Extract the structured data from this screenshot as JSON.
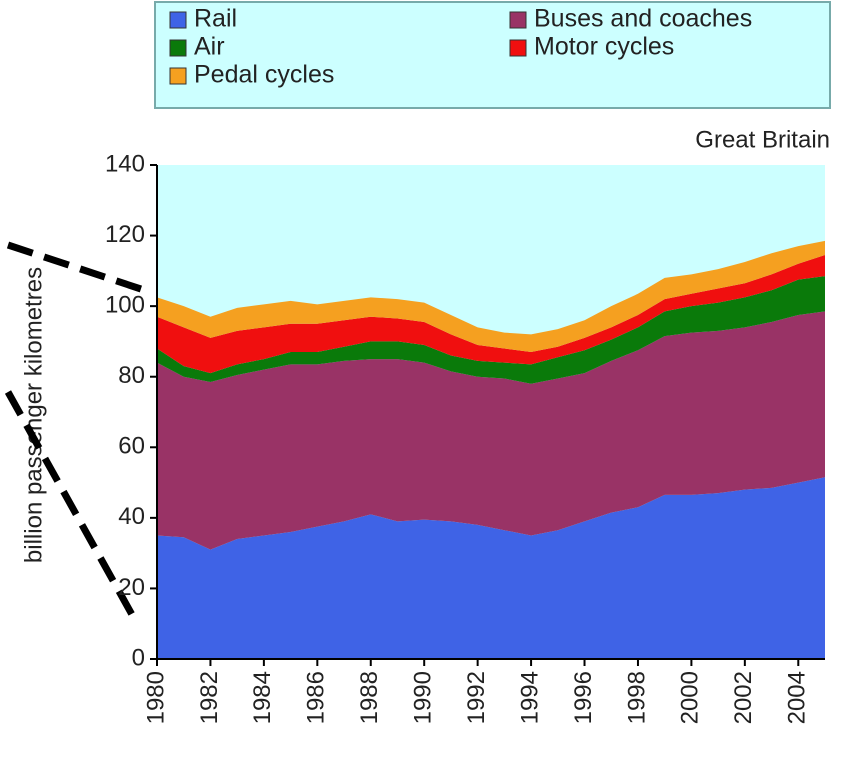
{
  "chart_data": {
    "type": "stacked_area",
    "subtitle": "Great Britain",
    "y_label": "billion passenger kilometres",
    "x": [
      1980,
      1981,
      1982,
      1983,
      1984,
      1985,
      1986,
      1987,
      1988,
      1989,
      1990,
      1991,
      1992,
      1993,
      1994,
      1995,
      1996,
      1997,
      1998,
      1999,
      2000,
      2001,
      2002,
      2003,
      2004,
      2005
    ],
    "xlim": [
      1980,
      2005
    ],
    "xticks": [
      1980,
      1982,
      1984,
      1986,
      1988,
      1990,
      1992,
      1994,
      1996,
      1998,
      2000,
      2002,
      2004
    ],
    "ylim": [
      0,
      140
    ],
    "yticks": [
      0,
      20,
      40,
      60,
      80,
      100,
      120,
      140
    ],
    "legend": "top",
    "series": [
      {
        "name": "Rail",
        "color": "#3f63e6",
        "values": [
          35,
          34.5,
          31,
          34,
          35,
          36,
          37.5,
          39,
          41,
          39,
          39.5,
          39,
          38,
          36.5,
          35,
          36.5,
          39,
          41.5,
          43,
          46.5,
          46.5,
          47,
          48,
          48.5,
          50,
          51.5
        ]
      },
      {
        "name": "Buses and coaches",
        "color": "#993366",
        "values": [
          49,
          45.5,
          47.5,
          46.5,
          47,
          47.5,
          46,
          45.5,
          44,
          46,
          44.5,
          42.5,
          42,
          43,
          43,
          43,
          42,
          43,
          44.5,
          45,
          46,
          46,
          46,
          47,
          47.5,
          47
        ]
      },
      {
        "name": "Air",
        "color": "#0a7a0a",
        "values": [
          4,
          3,
          2.5,
          3,
          3,
          3.5,
          3.5,
          4,
          5,
          5,
          5,
          4.5,
          4.5,
          4.5,
          5.5,
          6,
          6.5,
          6,
          6.5,
          7,
          7.5,
          8,
          8.5,
          9,
          10,
          10
        ]
      },
      {
        "name": "Motor cycles",
        "color": "#f00f0f",
        "values": [
          9,
          11,
          10,
          9.5,
          9,
          8,
          8,
          7.5,
          7,
          6.5,
          6.5,
          6,
          4.5,
          4,
          3.5,
          3,
          3.5,
          3.5,
          3.5,
          3.5,
          3.5,
          4,
          4,
          4.5,
          4.5,
          6
        ]
      },
      {
        "name": "Pedal cycles",
        "color": "#f5a020",
        "values": [
          5.5,
          6,
          6,
          6.5,
          6.5,
          6.5,
          5.5,
          5.5,
          5.5,
          5.5,
          5.5,
          5.5,
          5,
          4.5,
          5,
          5,
          5,
          6,
          6,
          6,
          5.5,
          5.5,
          6,
          6,
          5,
          4
        ]
      }
    ]
  }
}
